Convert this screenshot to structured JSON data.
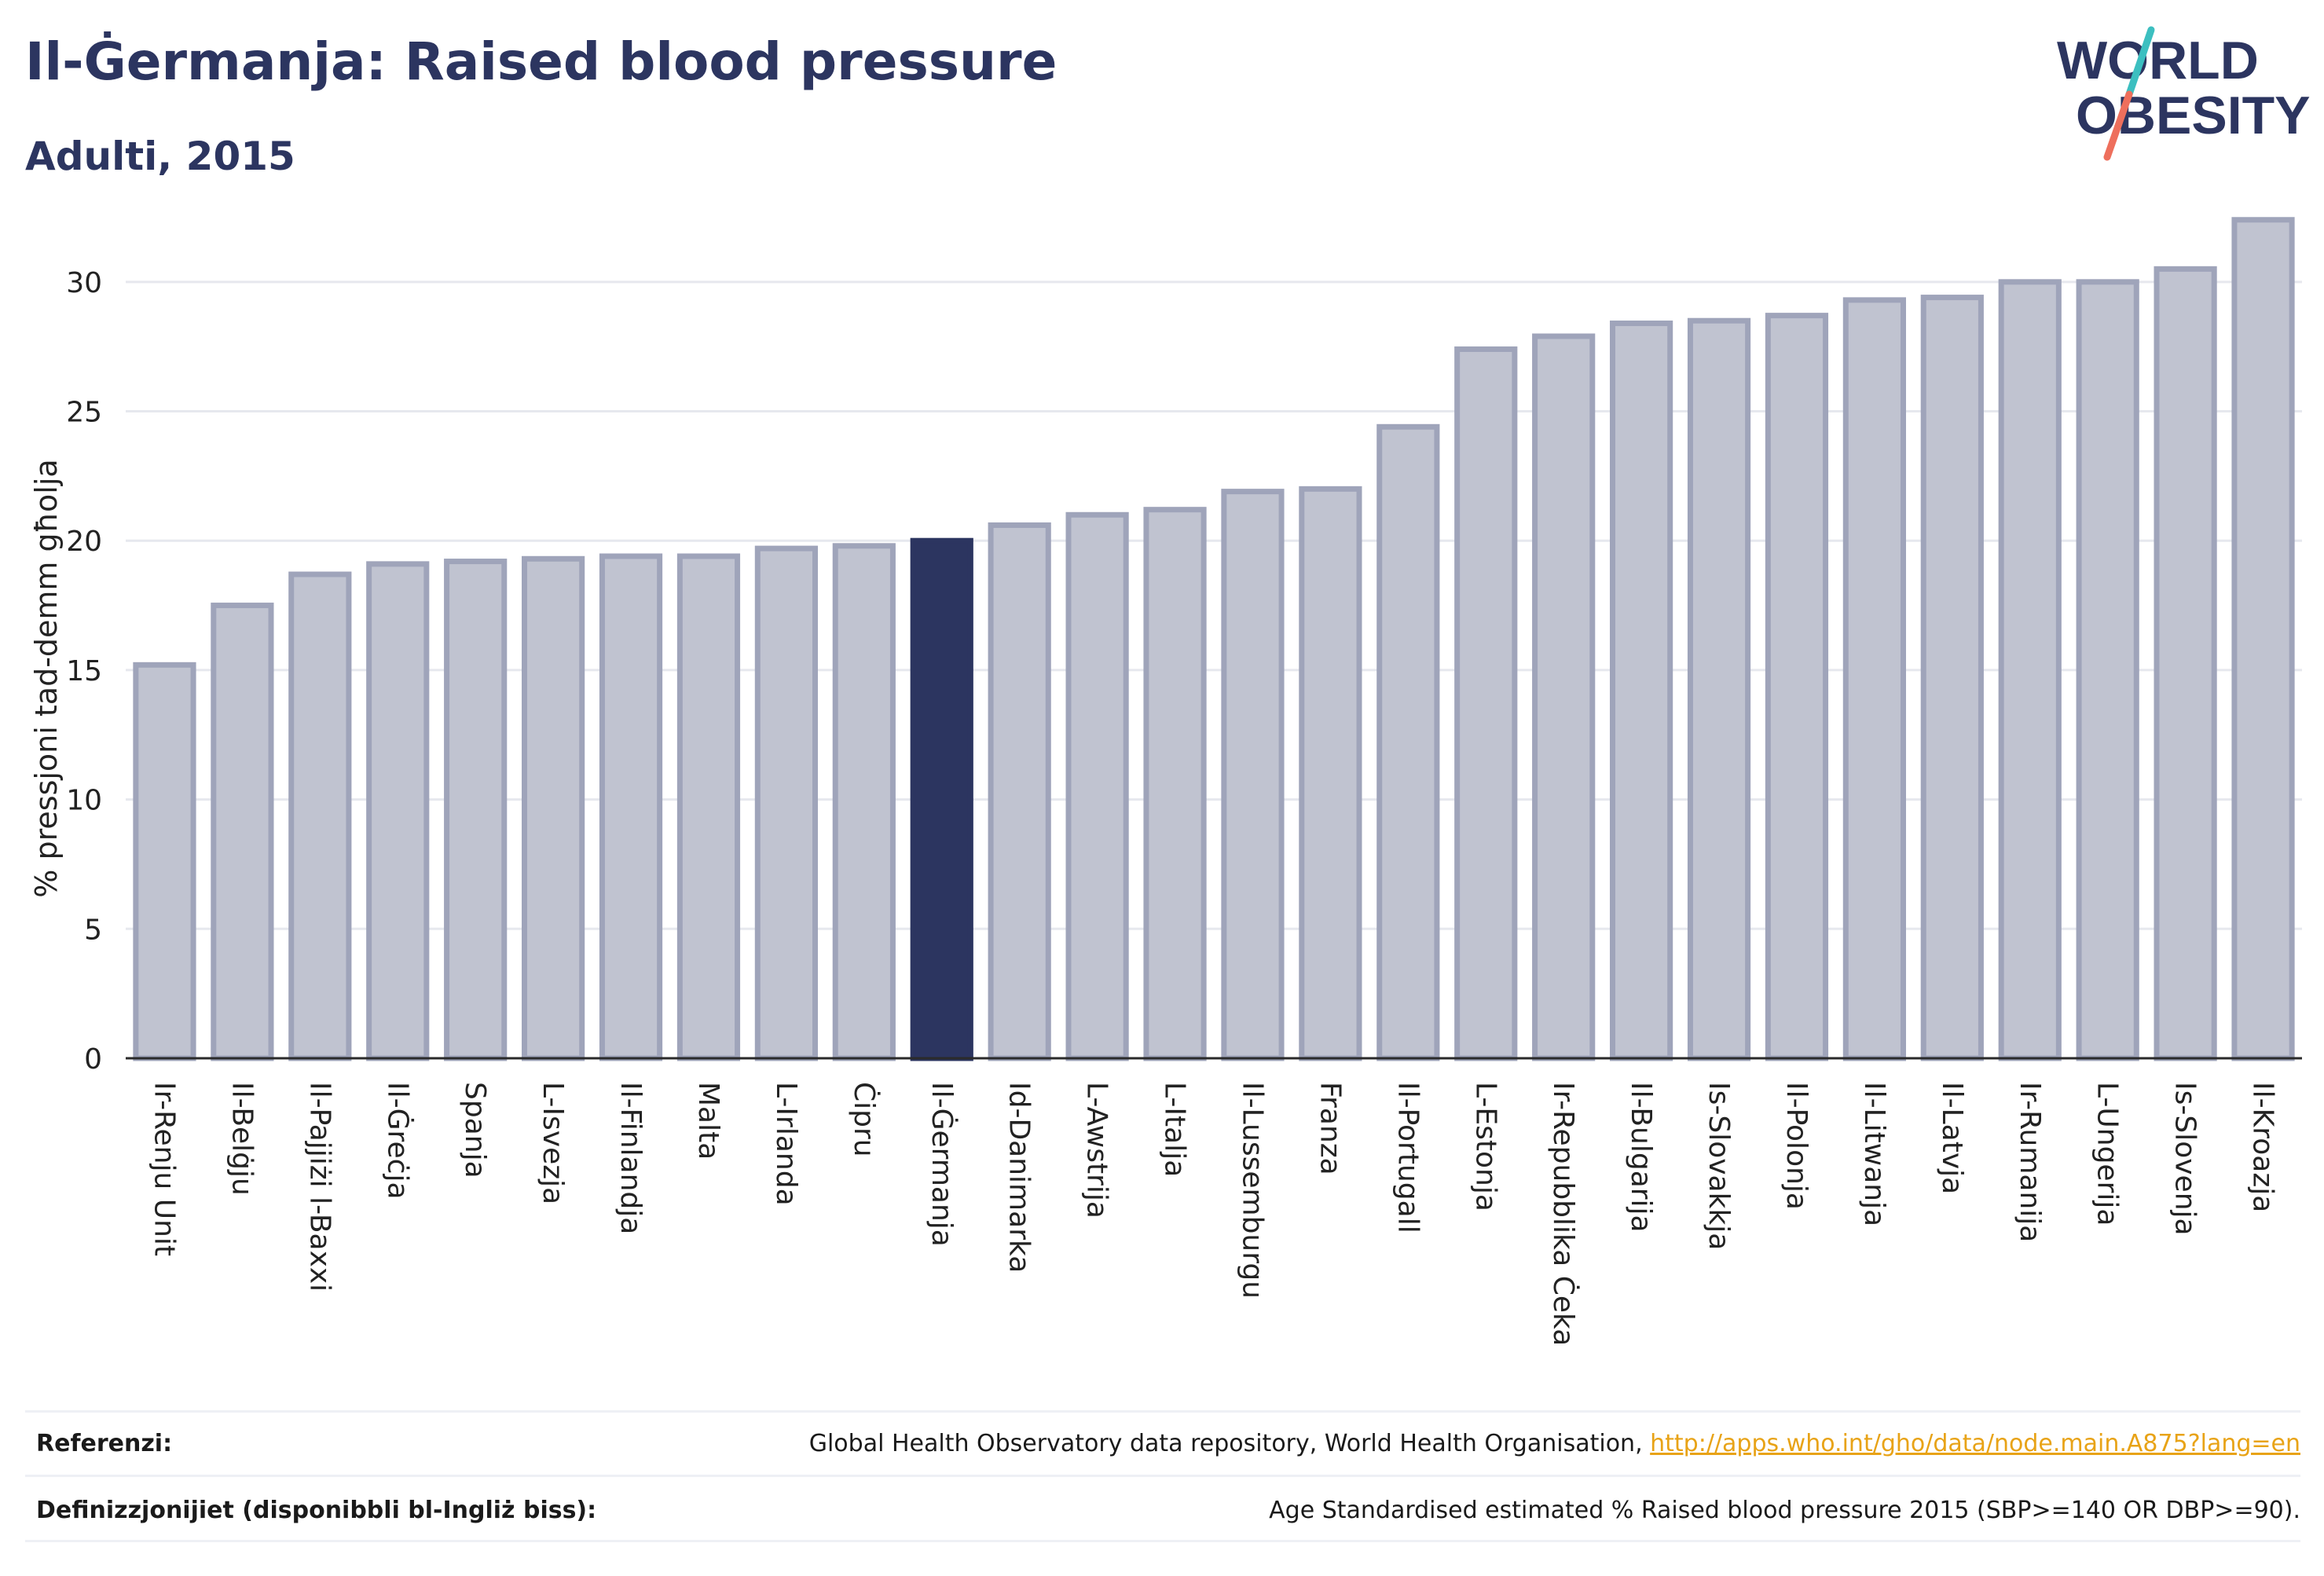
{
  "header": {
    "title": "Il-Ġermanja: Raised blood pressure",
    "subtitle": "Adulti, 2015"
  },
  "logo": {
    "line1": "WORLD",
    "line2": "OBESITY",
    "text_color": "#2c3560",
    "slash_teal": "#3cbfc0",
    "slash_coral": "#ee6f5c"
  },
  "colors": {
    "bar_fill": "#c0c3d0",
    "bar_stroke": "#9fa4ba",
    "highlight": "#2c3560",
    "grid": "#e6e8ee",
    "axis": "#2a2a2a",
    "text": "#222222"
  },
  "chart_data": {
    "type": "bar",
    "ylabel": "% pressjoni tad-demm għolja",
    "ylim": [
      0,
      33
    ],
    "yticks": [
      0,
      5,
      10,
      15,
      20,
      25,
      30
    ],
    "grid": true,
    "highlight_category": "Il-Ġermanja",
    "categories": [
      "Ir-Renju Unit",
      "Il-Belġju",
      "Il-Pajjiżi l-Baxxi",
      "Il-Ġreċja",
      "Spanja",
      "L-Isvezja",
      "Il-Finlandja",
      "Malta",
      "L-Irlanda",
      "Ċipru",
      "Il-Ġermanja",
      "Id-Danimarka",
      "L-Awstrija",
      "L-Italja",
      "Il-Lussemburgu",
      "Franza",
      "Il-Portugall",
      "L-Estonja",
      "Ir-Repubblika Ċeka",
      "Il-Bulgarija",
      "Is-Slovakkja",
      "Il-Polonja",
      "Il-Litwanja",
      "Il-Latvja",
      "Ir-Rumanija",
      "L-Ungerija",
      "Is-Slovenja",
      "Il-Kroazja"
    ],
    "values": [
      15.2,
      17.5,
      18.7,
      19.1,
      19.2,
      19.3,
      19.4,
      19.4,
      19.7,
      19.8,
      20.0,
      20.6,
      21.0,
      21.2,
      21.9,
      22.0,
      24.4,
      27.4,
      27.9,
      28.4,
      28.5,
      28.7,
      29.3,
      29.4,
      30.0,
      30.0,
      30.5,
      32.4
    ]
  },
  "footer": {
    "references_label": "Referenzi:",
    "references_text": "Global Health Observatory data repository, World Health Organisation, ",
    "references_link": "http://apps.who.int/gho/data/node.main.A875?lang=en",
    "definitions_label": "Definizzjonijiet (disponibbli bl-Ingliż biss):",
    "definitions_text": "Age Standardised estimated % Raised blood pressure 2015 (SBP>=140 OR DBP>=90)."
  }
}
